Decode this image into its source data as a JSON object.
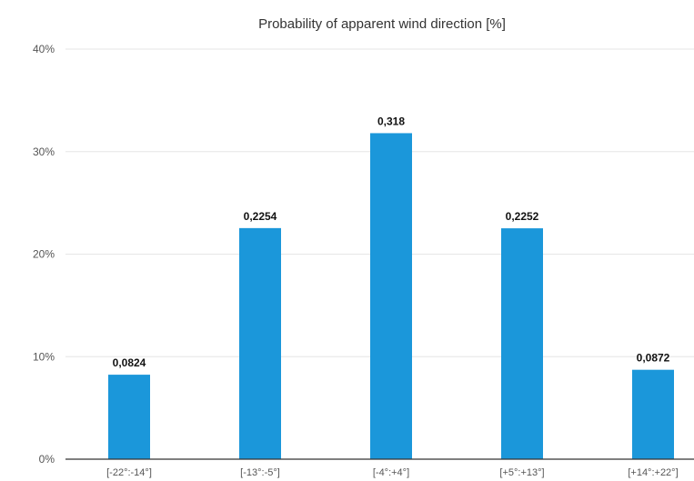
{
  "chart_data": {
    "type": "bar",
    "title": "Probability of apparent wind direction [%]",
    "xlabel": "",
    "ylabel": "",
    "categories": [
      "[-22°:-14°]",
      "[-13°:-5°]",
      "[-4°:+4°]",
      "[+5°:+13°]",
      "[+14°:+22°]"
    ],
    "values": [
      0.0824,
      0.2254,
      0.318,
      0.2252,
      0.0872
    ],
    "data_labels": [
      "0,0824",
      "0,2254",
      "0,318",
      "0,2252",
      "0,0872"
    ],
    "ylim": [
      0,
      0.4
    ],
    "yticks": [
      0,
      0.1,
      0.2,
      0.3,
      0.4
    ],
    "ytick_labels": [
      "0%",
      "10%",
      "20%",
      "30%",
      "40%"
    ],
    "grid": true,
    "legend": "none",
    "colors": {
      "bar": "#1B97DA",
      "grid": "#e6e6e6",
      "axis": "#333333"
    }
  }
}
